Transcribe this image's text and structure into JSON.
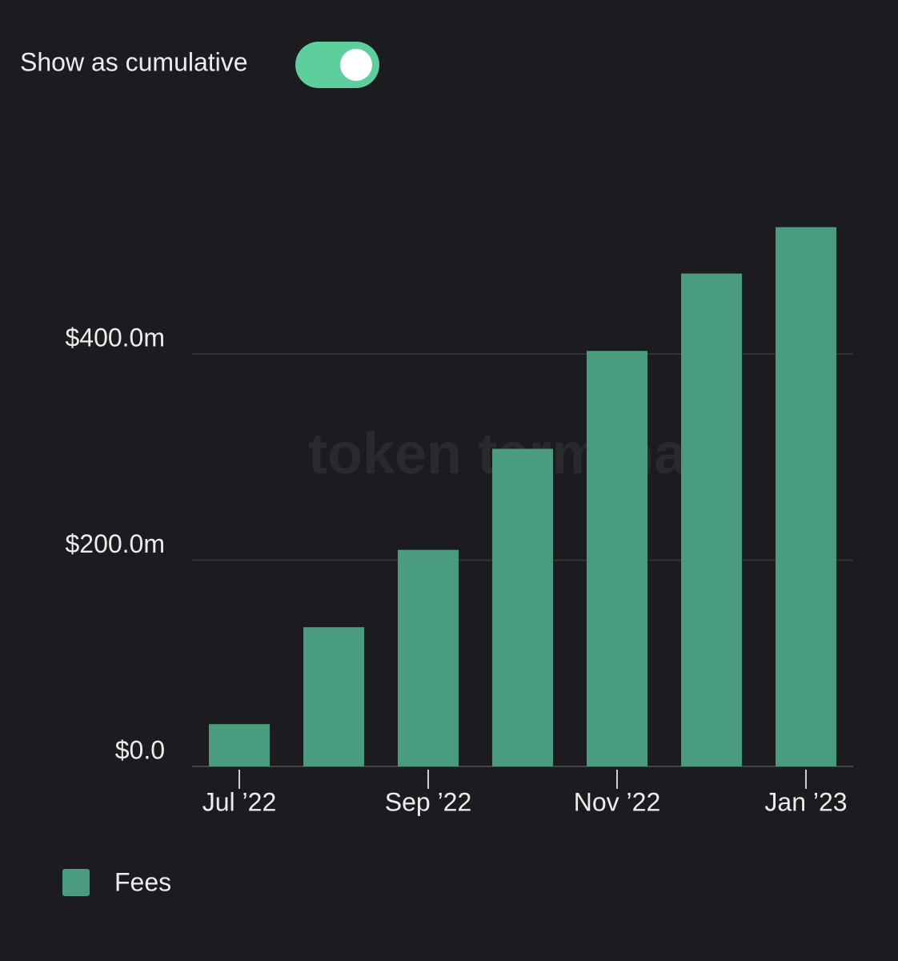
{
  "chart_data": {
    "type": "bar",
    "toggle": {
      "label": "Show as cumulative",
      "on": true
    },
    "watermark": "token terminal",
    "categories": [
      "Jul ’22",
      null,
      "Sep ’22",
      null,
      "Nov ’22",
      null,
      "Jan ’23"
    ],
    "series": [
      {
        "name": "Fees",
        "color": "#4a9c7f",
        "values": [
          41,
          135,
          210,
          308,
          403,
          478,
          523
        ]
      }
    ],
    "ylim": [
      0,
      600
    ],
    "yticks": [
      {
        "value": 0,
        "label": "$0.0"
      },
      {
        "value": 200,
        "label": "$200.0m"
      },
      {
        "value": 400,
        "label": "$400.0m"
      }
    ],
    "grid": true
  }
}
